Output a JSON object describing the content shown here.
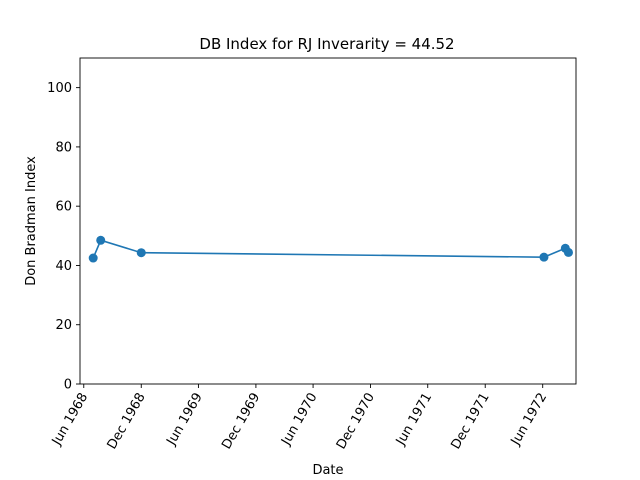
{
  "chart_data": {
    "type": "line",
    "title": "DB Index for RJ Inverarity = 44.52",
    "xlabel": "Date",
    "ylabel": "Don Bradman Index",
    "ylim": [
      0,
      110
    ],
    "yticks": [
      0,
      20,
      40,
      60,
      80,
      100
    ],
    "xlim": [
      "1968-05-20",
      "1972-09-15"
    ],
    "xticks": [
      {
        "date": "1968-06-01",
        "label": "Jun 1968"
      },
      {
        "date": "1968-12-01",
        "label": "Dec 1968"
      },
      {
        "date": "1969-06-01",
        "label": "Jun 1969"
      },
      {
        "date": "1969-12-01",
        "label": "Dec 1969"
      },
      {
        "date": "1970-06-01",
        "label": "Jun 1970"
      },
      {
        "date": "1970-12-01",
        "label": "Dec 1970"
      },
      {
        "date": "1971-06-01",
        "label": "Jun 1971"
      },
      {
        "date": "1971-12-01",
        "label": "Dec 1971"
      },
      {
        "date": "1972-06-01",
        "label": "Jun 1972"
      }
    ],
    "grid": false,
    "series": [
      {
        "color": "#1f77b4",
        "points": [
          {
            "x": "1968-07-01",
            "y": 42.5
          },
          {
            "x": "1968-07-25",
            "y": 48.5
          },
          {
            "x": "1968-12-01",
            "y": 44.3
          },
          {
            "x": "1972-06-05",
            "y": 42.8
          },
          {
            "x": "1972-08-12",
            "y": 45.8
          },
          {
            "x": "1972-08-22",
            "y": 44.4
          }
        ]
      }
    ]
  }
}
